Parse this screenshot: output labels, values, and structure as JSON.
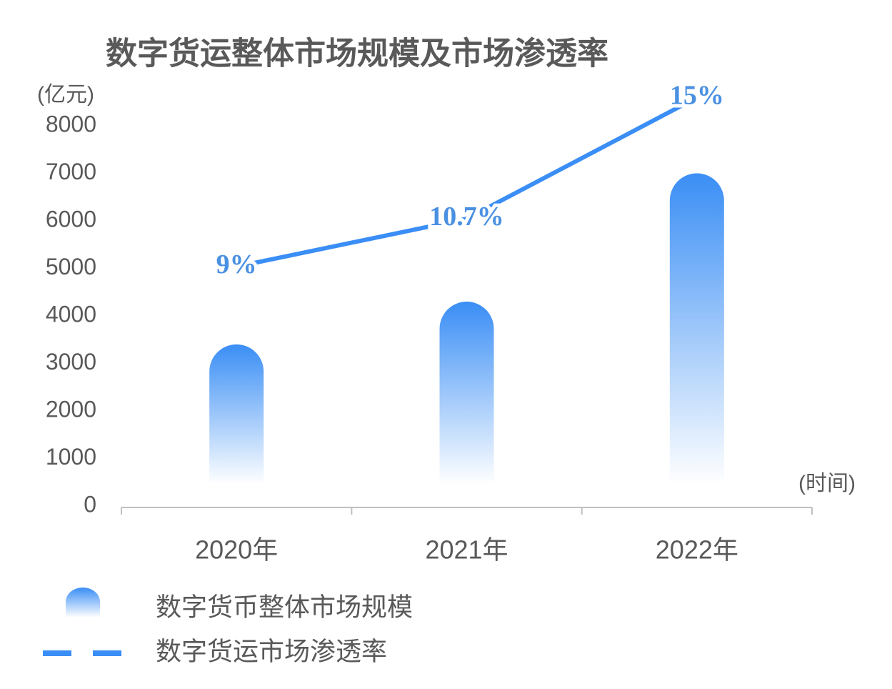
{
  "chart_data": {
    "type": "bar",
    "title": "数字货运整体市场规模及市场渗透率",
    "y_label": "(亿元)",
    "x_label": "(时间)",
    "categories": [
      "2020年",
      "2021年",
      "2022年"
    ],
    "series": [
      {
        "name": "数字货币整体市场规模",
        "type": "bar",
        "color": "#3a8ef5",
        "values": [
          3400,
          4300,
          7000
        ]
      },
      {
        "name": "数字货运市场渗透率",
        "type": "line",
        "axis": "y2",
        "color": "#3a8ef5",
        "values": [
          9,
          10.7,
          15
        ],
        "value_labels": [
          "9%",
          "10.7%",
          "15%"
        ]
      }
    ],
    "ylim": [
      0,
      8000
    ],
    "yticks": [
      0,
      1000,
      2000,
      3000,
      4000,
      5000,
      6000,
      7000,
      8000
    ],
    "y2lim": [
      0.5,
      14
    ],
    "grid": false
  }
}
